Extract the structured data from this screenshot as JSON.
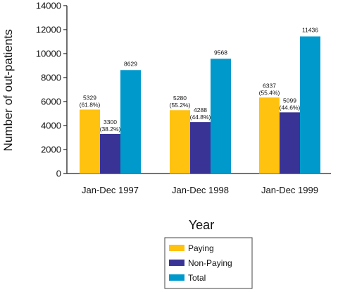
{
  "chart_data": {
    "type": "bar",
    "title": "",
    "xlabel": "Year",
    "ylabel": "Number of out-patients",
    "ylim": [
      0,
      14000
    ],
    "yticks": [
      0,
      2000,
      4000,
      6000,
      8000,
      10000,
      12000,
      14000
    ],
    "categories": [
      "Jan-Dec 1997",
      "Jan-Dec 1998",
      "Jan-Dec 1999"
    ],
    "series": [
      {
        "name": "Paying",
        "color": "#FFC20E",
        "values": [
          5329,
          5280,
          6337
        ],
        "percent_labels": [
          "(61.8%)",
          "(55.2%)",
          "(55.4%)"
        ]
      },
      {
        "name": "Non-Paying",
        "color": "#3A3396",
        "values": [
          3300,
          4288,
          5099
        ],
        "percent_labels": [
          "(38.2%)",
          "(44.8%)",
          "(44.6%)"
        ]
      },
      {
        "name": "Total",
        "color": "#0099CC",
        "values": [
          8629,
          9568,
          11436
        ],
        "percent_labels": [
          "",
          "",
          ""
        ]
      }
    ],
    "grid": false,
    "legend_position": "bottom-center"
  }
}
